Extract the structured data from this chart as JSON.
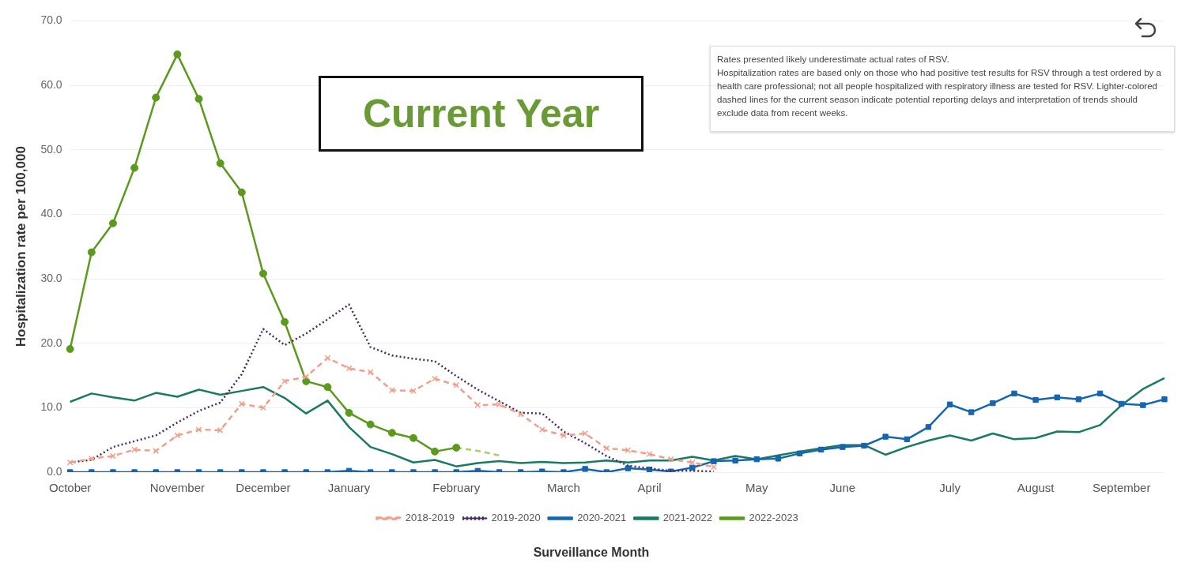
{
  "chart_data": {
    "type": "line",
    "xlabel": "Surveillance Month",
    "ylabel": "Hospitalization rate per 100,000",
    "categories": [
      "October",
      null,
      null,
      null,
      null,
      "November",
      null,
      null,
      null,
      "December",
      null,
      null,
      null,
      "January",
      null,
      null,
      null,
      null,
      "February",
      null,
      null,
      null,
      null,
      "March",
      null,
      null,
      null,
      "April",
      null,
      null,
      null,
      null,
      "May",
      null,
      null,
      null,
      "June",
      null,
      null,
      null,
      null,
      "July",
      null,
      null,
      null,
      "August",
      null,
      null,
      null,
      "September",
      null,
      null
    ],
    "ylim": [
      0,
      70
    ],
    "yticks": [
      {
        "value": 0,
        "label": "0.0"
      },
      {
        "value": 10,
        "label": "10.0"
      },
      {
        "value": 20,
        "label": "20.0"
      },
      {
        "value": 30,
        "label": "30.0"
      },
      {
        "value": 40,
        "label": "40.0"
      },
      {
        "value": 50,
        "label": "50.0"
      },
      {
        "value": 60,
        "label": "60.0"
      },
      {
        "value": 70,
        "label": "70.0"
      }
    ],
    "grid": "y",
    "legend": "bottom",
    "annotations": [
      "Current Year",
      "Rates presented likely underestimate actual rates of RSV.\nHospitalization rates are based only on those who had positive test results for RSV through a test ordered by a health care professional; not all people hospitalized with respiratory illness are tested for RSV. Lighter-colored dashed lines for the current season indicate potential reporting delays and interpretation of trends should exclude data from recent weeks."
    ],
    "series": [
      {
        "name": "2018-2019",
        "color": "#f0a08a",
        "marker": "cross",
        "line_style": "dashed",
        "values": [
          1.5,
          2.1,
          2.5,
          3.5,
          3.3,
          5.7,
          6.6,
          6.5,
          10.6,
          10.0,
          14.1,
          14.8,
          17.7,
          16.1,
          15.5,
          12.7,
          12.6,
          14.5,
          13.5,
          10.4,
          10.5,
          9.0,
          6.6,
          5.7,
          6.0,
          3.7,
          3.4,
          2.8,
          2.0,
          1.5,
          0.8,
          null,
          null,
          null,
          null,
          null,
          null,
          null,
          null,
          null,
          null,
          null,
          null,
          null,
          null,
          null,
          null,
          null,
          null,
          null,
          null,
          null
        ]
      },
      {
        "name": "2019-2020",
        "color": "#4b2a5e",
        "marker": "none",
        "line_style": "dotted",
        "values": [
          1.5,
          1.9,
          3.9,
          4.8,
          5.7,
          7.7,
          9.5,
          10.8,
          15.2,
          22.2,
          19.7,
          21.5,
          23.7,
          26.0,
          19.4,
          18.1,
          17.6,
          17.2,
          14.9,
          12.8,
          11.0,
          9.2,
          9.1,
          6.3,
          4.5,
          2.5,
          1.0,
          0.6,
          0.2,
          0.2,
          0.1,
          null,
          null,
          null,
          null,
          null,
          null,
          null,
          null,
          null,
          null,
          null,
          null,
          null,
          null,
          null,
          null,
          null,
          null,
          null,
          null,
          null
        ]
      },
      {
        "name": "2020-2021",
        "color": "#1565b0",
        "marker": "square",
        "line_style": "solid",
        "values": [
          0,
          0,
          0,
          0,
          0,
          0,
          0,
          0,
          0,
          0,
          0,
          0,
          0,
          0.2,
          0,
          0,
          0,
          0,
          0,
          0.2,
          0,
          0,
          0.1,
          0,
          0.5,
          0,
          0.6,
          0.4,
          0.1,
          0.7,
          1.7,
          1.8,
          2.0,
          2.1,
          2.9,
          3.5,
          3.9,
          4.1,
          5.5,
          5.1,
          7.0,
          10.5,
          9.3,
          10.7,
          12.2,
          11.2,
          11.6,
          11.3,
          12.2,
          10.6,
          10.4,
          11.3
        ]
      },
      {
        "name": "2021-2022",
        "color": "#1a7a62",
        "marker": "none",
        "line_style": "solid",
        "values": [
          10.9,
          12.2,
          11.6,
          11.1,
          12.3,
          11.7,
          12.8,
          12.0,
          12.6,
          13.2,
          11.5,
          9.1,
          11.1,
          7.0,
          3.9,
          2.8,
          1.5,
          1.9,
          0.9,
          1.4,
          1.7,
          1.4,
          1.6,
          1.4,
          1.5,
          1.8,
          1.5,
          1.8,
          1.8,
          2.4,
          1.8,
          2.5,
          2.0,
          2.6,
          3.2,
          3.7,
          4.2,
          4.2,
          2.7,
          3.9,
          4.9,
          5.7,
          4.9,
          6.0,
          5.1,
          5.3,
          6.3,
          6.2,
          7.3,
          10.4,
          12.9,
          14.6
        ]
      },
      {
        "name": "2022-2023",
        "color": "#5c9a1e",
        "marker": "circle",
        "line_style": "solid",
        "values": [
          19.1,
          34.1,
          38.6,
          47.2,
          58.1,
          64.8,
          57.9,
          47.9,
          43.4,
          30.8,
          23.3,
          14.1,
          13.2,
          9.2,
          7.4,
          6.1,
          5.3,
          3.2,
          3.8,
          null,
          null,
          null,
          null,
          null,
          null,
          null,
          null,
          null,
          null,
          null,
          null,
          null,
          null,
          null,
          null,
          null,
          null,
          null,
          null,
          null,
          null,
          null,
          null,
          null,
          null,
          null,
          null,
          null,
          null,
          null,
          null,
          null
        ]
      },
      {
        "color": "#a8cf6a",
        "marker": "none",
        "line_style": "dashed",
        "values": [
          null,
          null,
          null,
          null,
          null,
          null,
          null,
          null,
          null,
          null,
          null,
          null,
          null,
          null,
          null,
          null,
          null,
          null,
          3.8,
          3.3,
          2.6,
          null,
          null,
          null,
          null,
          null,
          null,
          null,
          null,
          null,
          null,
          null,
          null,
          null,
          null,
          null,
          null,
          null,
          null,
          null,
          null,
          null,
          null,
          null,
          null,
          null,
          null,
          null,
          null,
          null,
          null,
          null
        ]
      }
    ]
  }
}
